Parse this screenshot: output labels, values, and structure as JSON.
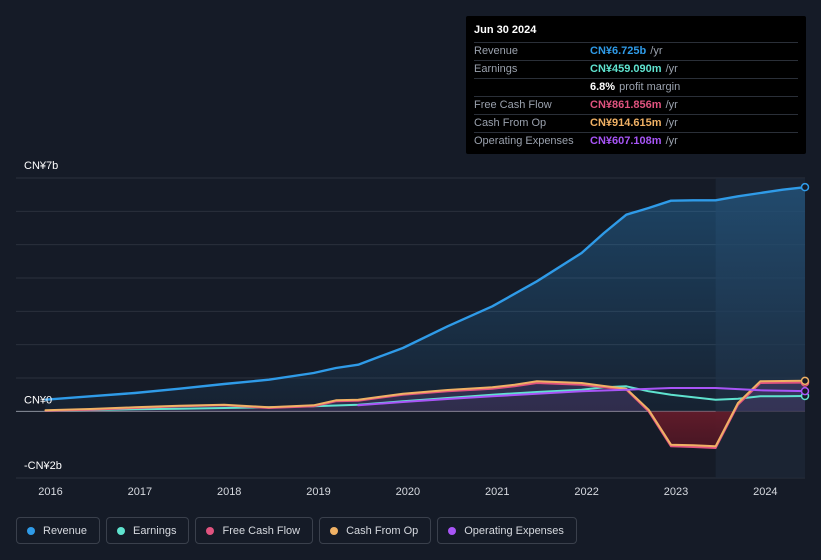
{
  "tooltip": {
    "date": "Jun 30 2024",
    "rows": [
      {
        "label": "Revenue",
        "value": "CN¥6.725b",
        "unit": "/yr",
        "color": "#2f9be8"
      },
      {
        "label": "Earnings",
        "value": "CN¥459.090m",
        "unit": "/yr",
        "color": "#5fe3cf"
      },
      {
        "label": "",
        "value": "6.8%",
        "unit": "profit margin",
        "color": "#ffffff"
      },
      {
        "label": "Free Cash Flow",
        "value": "CN¥861.856m",
        "unit": "/yr",
        "color": "#e0537f"
      },
      {
        "label": "Cash From Op",
        "value": "CN¥914.615m",
        "unit": "/yr",
        "color": "#f0b165"
      },
      {
        "label": "Operating Expenses",
        "value": "CN¥607.108m",
        "unit": "/yr",
        "color": "#a855f7"
      }
    ]
  },
  "legend": [
    {
      "label": "Revenue",
      "color": "#2f9be8"
    },
    {
      "label": "Earnings",
      "color": "#5fe3cf"
    },
    {
      "label": "Free Cash Flow",
      "color": "#e0537f"
    },
    {
      "label": "Cash From Op",
      "color": "#f0b165"
    },
    {
      "label": "Operating Expenses",
      "color": "#a855f7"
    }
  ],
  "chart_data": {
    "type": "line",
    "title": "",
    "xlabel": "",
    "ylabel": "",
    "x_ticks": [
      "2016",
      "2017",
      "2018",
      "2019",
      "2020",
      "2021",
      "2022",
      "2023",
      "2024"
    ],
    "y_ticks": [
      {
        "value": 7,
        "label": "CN¥7b"
      },
      {
        "value": 0,
        "label": "CN¥0"
      },
      {
        "value": -2,
        "label": "-CN¥2b"
      }
    ],
    "ylim": [
      -2,
      7
    ],
    "xlim": [
      2015.67,
      2024.5
    ],
    "forecast_start": 2023.5,
    "series": [
      {
        "name": "Revenue",
        "color": "#2f9be8",
        "fill": true,
        "x": [
          2016.0,
          2016.5,
          2017.0,
          2017.5,
          2018.0,
          2018.5,
          2019.0,
          2019.25,
          2019.5,
          2019.75,
          2020.0,
          2020.5,
          2021.0,
          2021.5,
          2022.0,
          2022.25,
          2022.5,
          2022.75,
          2023.0,
          2023.25,
          2023.5,
          2023.75,
          2024.0,
          2024.25,
          2024.5
        ],
        "values": [
          0.35,
          0.45,
          0.55,
          0.68,
          0.82,
          0.95,
          1.15,
          1.3,
          1.4,
          1.65,
          1.9,
          2.55,
          3.15,
          3.9,
          4.75,
          5.35,
          5.9,
          6.1,
          6.32,
          6.33,
          6.33,
          6.45,
          6.55,
          6.65,
          6.725
        ]
      },
      {
        "name": "Earnings",
        "color": "#5fe3cf",
        "fill": false,
        "x": [
          2016.0,
          2016.5,
          2017.0,
          2017.5,
          2018.0,
          2018.5,
          2019.0,
          2019.5,
          2020.0,
          2020.5,
          2021.0,
          2021.5,
          2022.0,
          2022.25,
          2022.5,
          2022.75,
          2023.0,
          2023.25,
          2023.5,
          2023.75,
          2024.0,
          2024.25,
          2024.5
        ],
        "values": [
          0.02,
          0.04,
          0.06,
          0.08,
          0.1,
          0.12,
          0.15,
          0.2,
          0.3,
          0.4,
          0.5,
          0.58,
          0.65,
          0.72,
          0.75,
          0.6,
          0.5,
          0.42,
          0.35,
          0.38,
          0.45,
          0.45,
          0.459
        ]
      },
      {
        "name": "Free Cash Flow",
        "color": "#e0537f",
        "fill": true,
        "x": [
          2016.0,
          2016.5,
          2017.0,
          2017.5,
          2018.0,
          2018.5,
          2019.0,
          2019.25,
          2019.5,
          2020.0,
          2020.5,
          2021.0,
          2021.25,
          2021.5,
          2022.0,
          2022.25,
          2022.5,
          2022.75,
          2023.0,
          2023.25,
          2023.5,
          2023.75,
          2024.0,
          2024.25,
          2024.5
        ],
        "values": [
          0.02,
          0.05,
          0.1,
          0.15,
          0.18,
          0.1,
          0.15,
          0.3,
          0.32,
          0.5,
          0.6,
          0.68,
          0.75,
          0.85,
          0.8,
          0.72,
          0.65,
          0.0,
          -1.05,
          -1.07,
          -1.1,
          0.2,
          0.85,
          0.86,
          0.862
        ]
      },
      {
        "name": "Cash From Op",
        "color": "#f0b165",
        "fill": false,
        "x": [
          2016.0,
          2016.5,
          2017.0,
          2017.5,
          2018.0,
          2018.5,
          2019.0,
          2019.25,
          2019.5,
          2020.0,
          2020.5,
          2021.0,
          2021.25,
          2021.5,
          2022.0,
          2022.25,
          2022.5,
          2022.75,
          2023.0,
          2023.25,
          2023.5,
          2023.75,
          2024.0,
          2024.25,
          2024.5
        ],
        "values": [
          0.03,
          0.07,
          0.12,
          0.17,
          0.2,
          0.12,
          0.18,
          0.33,
          0.35,
          0.53,
          0.64,
          0.72,
          0.8,
          0.9,
          0.85,
          0.76,
          0.68,
          0.05,
          -1.0,
          -1.02,
          -1.05,
          0.25,
          0.9,
          0.91,
          0.915
        ]
      },
      {
        "name": "Operating Expenses",
        "color": "#a855f7",
        "fill": false,
        "x": [
          2019.5,
          2020.0,
          2020.5,
          2021.0,
          2021.5,
          2022.0,
          2022.5,
          2023.0,
          2023.5,
          2024.0,
          2024.5
        ],
        "values": [
          0.18,
          0.28,
          0.37,
          0.45,
          0.53,
          0.6,
          0.65,
          0.7,
          0.7,
          0.63,
          0.607
        ]
      }
    ]
  }
}
